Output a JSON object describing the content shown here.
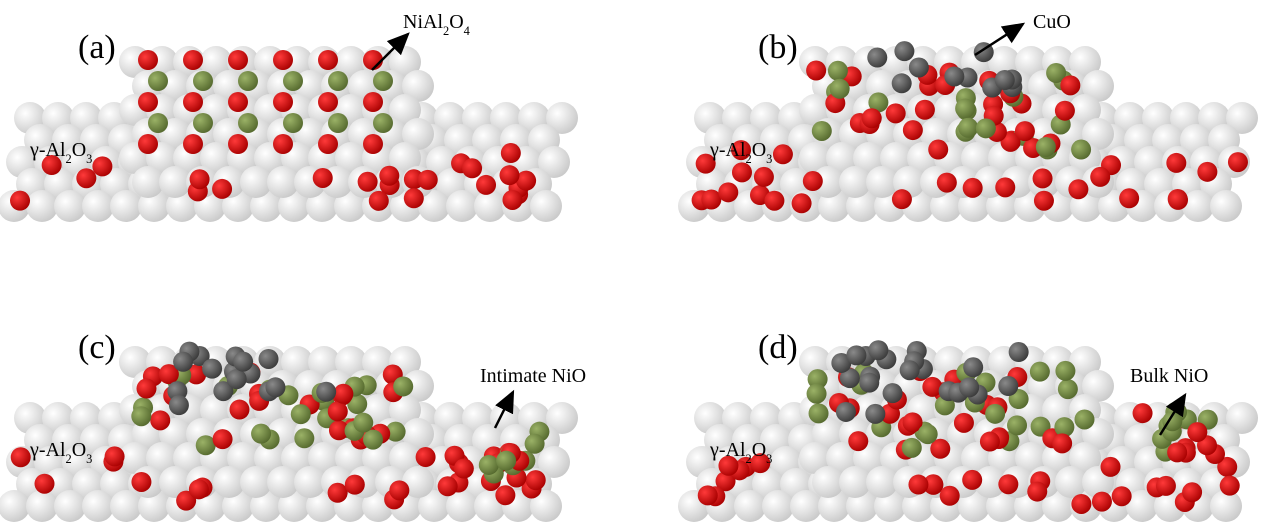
{
  "panels": [
    {
      "label": "(a)",
      "substrate": [
        "γ-Al",
        "2",
        "O",
        "3"
      ],
      "annotation": [
        "NiAl",
        "2",
        "O",
        "4"
      ]
    },
    {
      "label": "(b)",
      "substrate": [
        "γ-Al",
        "2",
        "O",
        "3"
      ],
      "annotation": [
        "CuO"
      ]
    },
    {
      "label": "(c)",
      "substrate": [
        "γ-Al",
        "2",
        "O",
        "3"
      ],
      "annotation": [
        "Intimate NiO"
      ]
    },
    {
      "label": "(d)",
      "substrate": [
        "γ-Al",
        "2",
        "O",
        "3"
      ],
      "annotation": [
        "Bulk NiO"
      ]
    }
  ]
}
